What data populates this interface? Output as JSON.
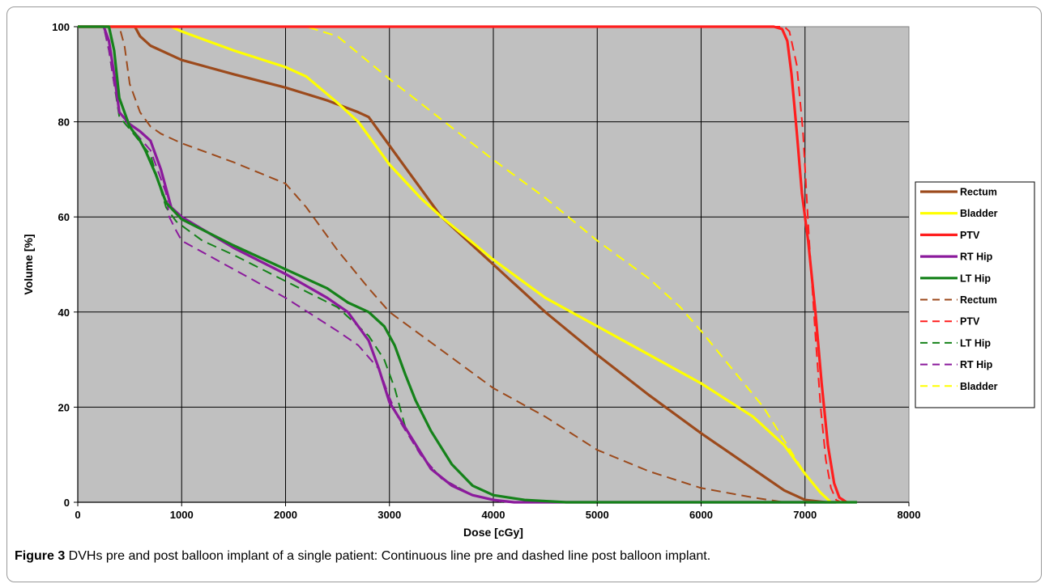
{
  "figure": {
    "caption_label": "Figure 3",
    "caption_text": " DVHs pre and post balloon implant of a single patient: Continuous line pre and dashed line post balloon implant."
  },
  "chart_data": {
    "type": "line",
    "xlabel": "Dose [cGy]",
    "ylabel": "Volume [%]",
    "xlim": [
      0,
      8000
    ],
    "ylim": [
      0,
      100
    ],
    "xticks": [
      0,
      1000,
      2000,
      3000,
      4000,
      5000,
      6000,
      7000,
      8000
    ],
    "yticks": [
      0,
      20,
      40,
      60,
      80,
      100
    ],
    "grid": true,
    "plot_background": "#c0c0c0",
    "legend_position": "right",
    "series": [
      {
        "name": "Rectum",
        "style": "solid",
        "color": "#9c4a1c",
        "points": [
          [
            0,
            100
          ],
          [
            550,
            100
          ],
          [
            600,
            98
          ],
          [
            700,
            96
          ],
          [
            1000,
            93
          ],
          [
            1500,
            90
          ],
          [
            2000,
            87.2
          ],
          [
            2400,
            84.5
          ],
          [
            2700,
            82
          ],
          [
            2800,
            81
          ],
          [
            3000,
            75
          ],
          [
            3200,
            69
          ],
          [
            3500,
            60
          ],
          [
            4000,
            50
          ],
          [
            4500,
            40
          ],
          [
            5000,
            31
          ],
          [
            5500,
            22.5
          ],
          [
            6000,
            14.5
          ],
          [
            6500,
            7
          ],
          [
            6800,
            2.5
          ],
          [
            7000,
            0.5
          ],
          [
            7200,
            0
          ]
        ]
      },
      {
        "name": "Bladder",
        "style": "solid",
        "color": "#ffff00",
        "points": [
          [
            0,
            100
          ],
          [
            900,
            100
          ],
          [
            1000,
            99
          ],
          [
            1500,
            95
          ],
          [
            2000,
            91.5
          ],
          [
            2200,
            89.5
          ],
          [
            2500,
            84
          ],
          [
            2700,
            80
          ],
          [
            3000,
            71
          ],
          [
            3300,
            64
          ],
          [
            3500,
            60
          ],
          [
            4000,
            51
          ],
          [
            4500,
            43
          ],
          [
            5000,
            37
          ],
          [
            5500,
            31
          ],
          [
            6000,
            25
          ],
          [
            6500,
            18
          ],
          [
            6800,
            12
          ],
          [
            7000,
            6
          ],
          [
            7150,
            2
          ],
          [
            7250,
            0
          ]
        ]
      },
      {
        "name": "PTV",
        "style": "solid",
        "color": "#ff1e1e",
        "points": [
          [
            0,
            100
          ],
          [
            6700,
            100
          ],
          [
            6780,
            99.5
          ],
          [
            6830,
            97
          ],
          [
            6870,
            90
          ],
          [
            6920,
            78
          ],
          [
            6970,
            65
          ],
          [
            7030,
            55
          ],
          [
            7100,
            40
          ],
          [
            7160,
            25
          ],
          [
            7220,
            12
          ],
          [
            7280,
            4
          ],
          [
            7330,
            1
          ],
          [
            7400,
            0
          ]
        ]
      },
      {
        "name": "RT Hip",
        "style": "solid",
        "color": "#8b1a9c",
        "points": [
          [
            0,
            100
          ],
          [
            250,
            100
          ],
          [
            300,
            97
          ],
          [
            350,
            90
          ],
          [
            400,
            82
          ],
          [
            500,
            79.5
          ],
          [
            600,
            78
          ],
          [
            700,
            76
          ],
          [
            800,
            70
          ],
          [
            900,
            62
          ],
          [
            1000,
            60
          ],
          [
            1500,
            53.5
          ],
          [
            2000,
            48
          ],
          [
            2400,
            43
          ],
          [
            2600,
            40
          ],
          [
            2800,
            34
          ],
          [
            2900,
            28
          ],
          [
            3000,
            21
          ],
          [
            3200,
            14
          ],
          [
            3400,
            7
          ],
          [
            3600,
            3.5
          ],
          [
            3800,
            1.5
          ],
          [
            4000,
            0.5
          ],
          [
            4200,
            0
          ],
          [
            7300,
            0
          ]
        ]
      },
      {
        "name": "LT Hip",
        "style": "solid",
        "color": "#15821a",
        "points": [
          [
            0,
            100
          ],
          [
            300,
            100
          ],
          [
            350,
            95
          ],
          [
            400,
            85
          ],
          [
            500,
            79
          ],
          [
            600,
            76
          ],
          [
            650,
            74
          ],
          [
            750,
            69
          ],
          [
            850,
            63
          ],
          [
            1000,
            59.5
          ],
          [
            1500,
            54
          ],
          [
            2000,
            49
          ],
          [
            2400,
            45
          ],
          [
            2600,
            42
          ],
          [
            2800,
            40
          ],
          [
            2950,
            37
          ],
          [
            3050,
            33
          ],
          [
            3150,
            27
          ],
          [
            3250,
            21.5
          ],
          [
            3400,
            15
          ],
          [
            3600,
            8
          ],
          [
            3800,
            3.5
          ],
          [
            4000,
            1.5
          ],
          [
            4300,
            0.5
          ],
          [
            4700,
            0
          ],
          [
            7500,
            0
          ]
        ]
      },
      {
        "name": "Rectum",
        "style": "dashed",
        "color": "#9c4a1c",
        "points": [
          [
            0,
            100
          ],
          [
            400,
            100
          ],
          [
            450,
            96
          ],
          [
            500,
            88
          ],
          [
            600,
            82
          ],
          [
            700,
            79
          ],
          [
            800,
            77.5
          ],
          [
            1000,
            75.5
          ],
          [
            1500,
            71.5
          ],
          [
            2000,
            67
          ],
          [
            2200,
            62
          ],
          [
            2500,
            53
          ],
          [
            2800,
            45
          ],
          [
            3000,
            40
          ],
          [
            3500,
            32
          ],
          [
            4000,
            24
          ],
          [
            4500,
            18
          ],
          [
            5000,
            11
          ],
          [
            5500,
            6.5
          ],
          [
            6000,
            3
          ],
          [
            6500,
            1
          ],
          [
            6800,
            0
          ]
        ]
      },
      {
        "name": "PTV",
        "style": "dashed",
        "color": "#ff1e1e",
        "points": [
          [
            0,
            100
          ],
          [
            6800,
            100
          ],
          [
            6850,
            99
          ],
          [
            6920,
            92
          ],
          [
            6980,
            78
          ],
          [
            7040,
            55
          ],
          [
            7100,
            35
          ],
          [
            7150,
            20
          ],
          [
            7200,
            9
          ],
          [
            7250,
            3
          ],
          [
            7300,
            0.5
          ],
          [
            7350,
            0
          ]
        ]
      },
      {
        "name": "LT Hip",
        "style": "dashed",
        "color": "#15821a",
        "points": [
          [
            0,
            100
          ],
          [
            250,
            100
          ],
          [
            300,
            95
          ],
          [
            350,
            88
          ],
          [
            400,
            81
          ],
          [
            500,
            78.5
          ],
          [
            700,
            73
          ],
          [
            850,
            62
          ],
          [
            950,
            59
          ],
          [
            1200,
            55
          ],
          [
            1500,
            52
          ],
          [
            2000,
            46.5
          ],
          [
            2500,
            41
          ],
          [
            2800,
            35
          ],
          [
            2950,
            30
          ],
          [
            3050,
            24
          ],
          [
            3150,
            16
          ],
          [
            3300,
            10
          ],
          [
            3500,
            5
          ],
          [
            3800,
            1.5
          ],
          [
            4100,
            0
          ]
        ]
      },
      {
        "name": "RT Hip",
        "style": "dashed",
        "color": "#8b1a9c",
        "points": [
          [
            0,
            100
          ],
          [
            250,
            100
          ],
          [
            300,
            95
          ],
          [
            350,
            88
          ],
          [
            400,
            82
          ],
          [
            500,
            79
          ],
          [
            700,
            74
          ],
          [
            850,
            65
          ],
          [
            880,
            60
          ],
          [
            950,
            57
          ],
          [
            1000,
            55
          ],
          [
            1500,
            49
          ],
          [
            2000,
            43
          ],
          [
            2500,
            36
          ],
          [
            2700,
            33
          ],
          [
            2900,
            28
          ],
          [
            3000,
            22
          ],
          [
            3100,
            17
          ],
          [
            3300,
            10
          ],
          [
            3500,
            5
          ],
          [
            3800,
            1.5
          ],
          [
            4100,
            0
          ]
        ]
      },
      {
        "name": "Bladder",
        "style": "dashed",
        "color": "#ffff00",
        "points": [
          [
            0,
            100
          ],
          [
            2200,
            100
          ],
          [
            2500,
            98
          ],
          [
            3000,
            89
          ],
          [
            3500,
            80.5
          ],
          [
            4000,
            72
          ],
          [
            4500,
            64
          ],
          [
            5000,
            55
          ],
          [
            5500,
            47
          ],
          [
            5800,
            41
          ],
          [
            6000,
            36
          ],
          [
            6300,
            28
          ],
          [
            6600,
            20
          ],
          [
            6800,
            13
          ],
          [
            7000,
            6
          ],
          [
            7150,
            2
          ],
          [
            7250,
            0
          ]
        ]
      }
    ]
  }
}
